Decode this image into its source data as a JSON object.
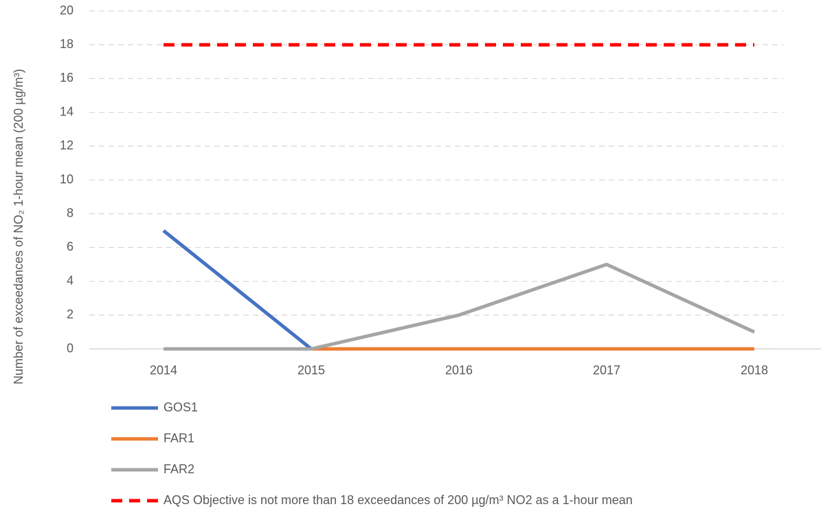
{
  "chart_data": {
    "type": "line",
    "ylabel": "Number of exceedances of NO₂ 1-hour mean (200 µg/m³)",
    "categories": [
      "2014",
      "2015",
      "2016",
      "2017",
      "2018"
    ],
    "series": [
      {
        "name": "GOS1",
        "color": "#4472c4",
        "values": [
          7,
          0,
          null,
          null,
          null
        ]
      },
      {
        "name": "FAR1",
        "color": "#ed7d31",
        "values": [
          null,
          0,
          0,
          0,
          0
        ]
      },
      {
        "name": "FAR2",
        "color": "#a5a5a5",
        "values": [
          0,
          0,
          2,
          5,
          1
        ]
      },
      {
        "name": "AQS Objective is not more than 18 exceedances of 200 µg/m³ NO2 as a 1-hour mean",
        "color": "#ff0000",
        "dashed": true,
        "values": [
          18,
          18,
          18,
          18,
          18
        ]
      }
    ],
    "ylim": [
      0,
      20
    ],
    "yticks": [
      0,
      2,
      4,
      6,
      8,
      10,
      12,
      14,
      16,
      18,
      20
    ],
    "grid": true,
    "legend": "bottom"
  }
}
